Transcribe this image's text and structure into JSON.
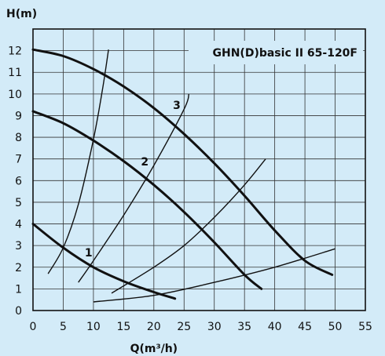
{
  "chart_data": {
    "type": "line",
    "title": "GHN(D)basic II 65-120F",
    "xlabel": "Q(m³/h)",
    "ylabel": "H(m)",
    "xlim": [
      0,
      55
    ],
    "ylim": [
      0,
      13
    ],
    "xticks": [
      0,
      5,
      10,
      15,
      20,
      25,
      30,
      35,
      40,
      45,
      50,
      55
    ],
    "yticks": [
      0,
      1,
      2,
      3,
      4,
      5,
      6,
      7,
      8,
      9,
      10,
      11,
      12
    ],
    "grid": true,
    "pump_curves": [
      {
        "label": "1",
        "label_at": [
          9.2,
          2.5
        ],
        "points": [
          [
            0,
            4.0
          ],
          [
            5,
            2.9
          ],
          [
            10,
            2.0
          ],
          [
            15,
            1.35
          ],
          [
            20,
            0.85
          ],
          [
            23.5,
            0.55
          ]
        ]
      },
      {
        "label": "2",
        "label_at": [
          18.5,
          6.7
        ],
        "points": [
          [
            0,
            9.2
          ],
          [
            5,
            8.65
          ],
          [
            10,
            7.85
          ],
          [
            15,
            6.9
          ],
          [
            20,
            5.8
          ],
          [
            25,
            4.55
          ],
          [
            30,
            3.15
          ],
          [
            35,
            1.65
          ],
          [
            37.8,
            1.0
          ]
        ]
      },
      {
        "label": "3",
        "label_at": [
          23.8,
          9.3
        ],
        "points": [
          [
            0,
            12.05
          ],
          [
            5,
            11.75
          ],
          [
            10,
            11.15
          ],
          [
            15,
            10.35
          ],
          [
            20,
            9.35
          ],
          [
            25,
            8.15
          ],
          [
            30,
            6.8
          ],
          [
            35,
            5.3
          ],
          [
            40,
            3.7
          ],
          [
            45,
            2.3
          ],
          [
            49.5,
            1.65
          ]
        ]
      }
    ],
    "system_curves": [
      {
        "points": [
          [
            2.5,
            1.7
          ],
          [
            5,
            2.9
          ],
          [
            7.5,
            4.9
          ],
          [
            10,
            7.9
          ],
          [
            11.5,
            10.2
          ],
          [
            12.5,
            12.05
          ]
        ]
      },
      {
        "points": [
          [
            7.5,
            1.3
          ],
          [
            10,
            2.3
          ],
          [
            15,
            4.4
          ],
          [
            20,
            6.7
          ],
          [
            25,
            9.3
          ],
          [
            25.8,
            10.0
          ]
        ]
      },
      {
        "points": [
          [
            13,
            0.8
          ],
          [
            20,
            2.0
          ],
          [
            25,
            3.0
          ],
          [
            30,
            4.3
          ],
          [
            35,
            5.8
          ],
          [
            38.5,
            7.0
          ]
        ]
      },
      {
        "points": [
          [
            10,
            0.4
          ],
          [
            20,
            0.7
          ],
          [
            30,
            1.3
          ],
          [
            40,
            2.0
          ],
          [
            50,
            2.85
          ]
        ]
      }
    ]
  }
}
